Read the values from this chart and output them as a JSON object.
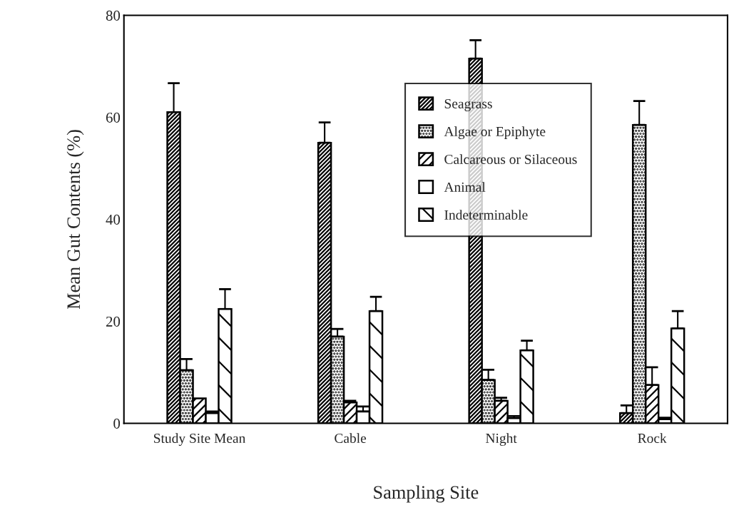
{
  "chart_data": {
    "type": "bar",
    "xlabel": "Sampling Site",
    "ylabel": "Mean Gut Contents (%)",
    "categories": [
      "Study Site Mean",
      "Cable",
      "Night",
      "Rock"
    ],
    "series": [
      {
        "name": "Seagrass",
        "color": "#000000",
        "values": [
          61,
          55,
          71.5,
          2.0
        ],
        "errors": [
          5.7,
          4,
          3.6,
          1.5
        ]
      },
      {
        "name": "Algae or Epiphyte",
        "color": "#000000",
        "values": [
          10.4,
          17,
          8.5,
          58.5
        ],
        "errors": [
          2.2,
          1.5,
          2,
          4.7
        ]
      },
      {
        "name": "Calcareous or Silaceous",
        "color": "#000000",
        "values": [
          4.9,
          4.1,
          4.4,
          7.5
        ],
        "errors": [
          null,
          0.3,
          0.6,
          3.5
        ]
      },
      {
        "name": "Animal",
        "color": "#ffffff",
        "values": [
          2.0,
          2.3,
          1.0,
          0.8
        ],
        "errors": [
          0.3,
          1.0,
          0.4,
          0.3
        ]
      },
      {
        "name": "Indeterminable",
        "color": "#000000",
        "values": [
          22.4,
          22,
          14.3,
          18.6
        ],
        "errors": [
          3.9,
          2.8,
          1.9,
          3.4
        ]
      }
    ],
    "ylim": [
      0,
      80
    ],
    "yticks": [
      0,
      20,
      40,
      60,
      80
    ],
    "grid": false,
    "legend": "top"
  }
}
